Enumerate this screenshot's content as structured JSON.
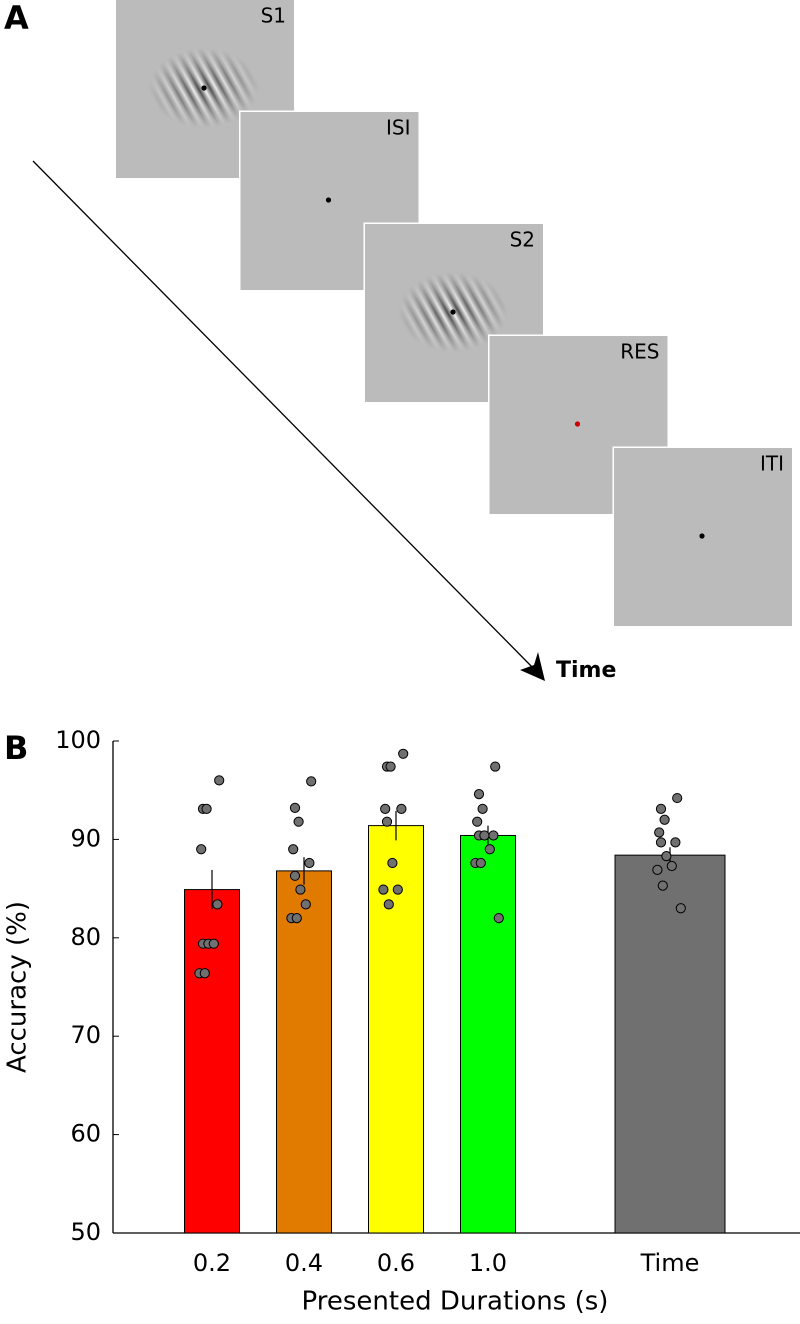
{
  "panel_a": {
    "label": "A",
    "frames": [
      "S1",
      "ISI",
      "S2",
      "RES",
      "ITI"
    ],
    "time_label": "Time"
  },
  "chart_data": {
    "type": "bar",
    "panel_label": "B",
    "categories": [
      "0.2",
      "0.4",
      "0.6",
      "1.0",
      "Time"
    ],
    "values": [
      84.9,
      86.8,
      91.4,
      90.4,
      88.4
    ],
    "errors": [
      2.0,
      1.4,
      1.5,
      1.0,
      0.8
    ],
    "colors": [
      "#ff0000",
      "#e07b00",
      "#ffff00",
      "#00ff00",
      "#707070"
    ],
    "point_color": "#707070",
    "points": [
      [
        96.0,
        93.1,
        93.1,
        89.0,
        83.4,
        79.4,
        79.4,
        79.4,
        76.4,
        76.4
      ],
      [
        95.9,
        93.2,
        91.8,
        89.0,
        87.6,
        86.3,
        84.9,
        83.4,
        82.0,
        82.0
      ],
      [
        98.7,
        97.4,
        97.4,
        93.1,
        93.1,
        91.8,
        87.6,
        84.9,
        84.9,
        83.4
      ],
      [
        97.4,
        94.6,
        93.1,
        91.8,
        90.4,
        90.4,
        90.4,
        89.0,
        87.6,
        87.6,
        82.0
      ],
      [
        94.2,
        93.1,
        92.0,
        90.7,
        89.7,
        89.7,
        88.3,
        87.3,
        86.9,
        85.3,
        83.0
      ]
    ],
    "x_label": "Presented Durations (s)",
    "y_label": "Accuracy (%)",
    "ylim": [
      50,
      100
    ],
    "yticks": [
      50,
      60,
      70,
      80,
      90,
      100
    ]
  }
}
